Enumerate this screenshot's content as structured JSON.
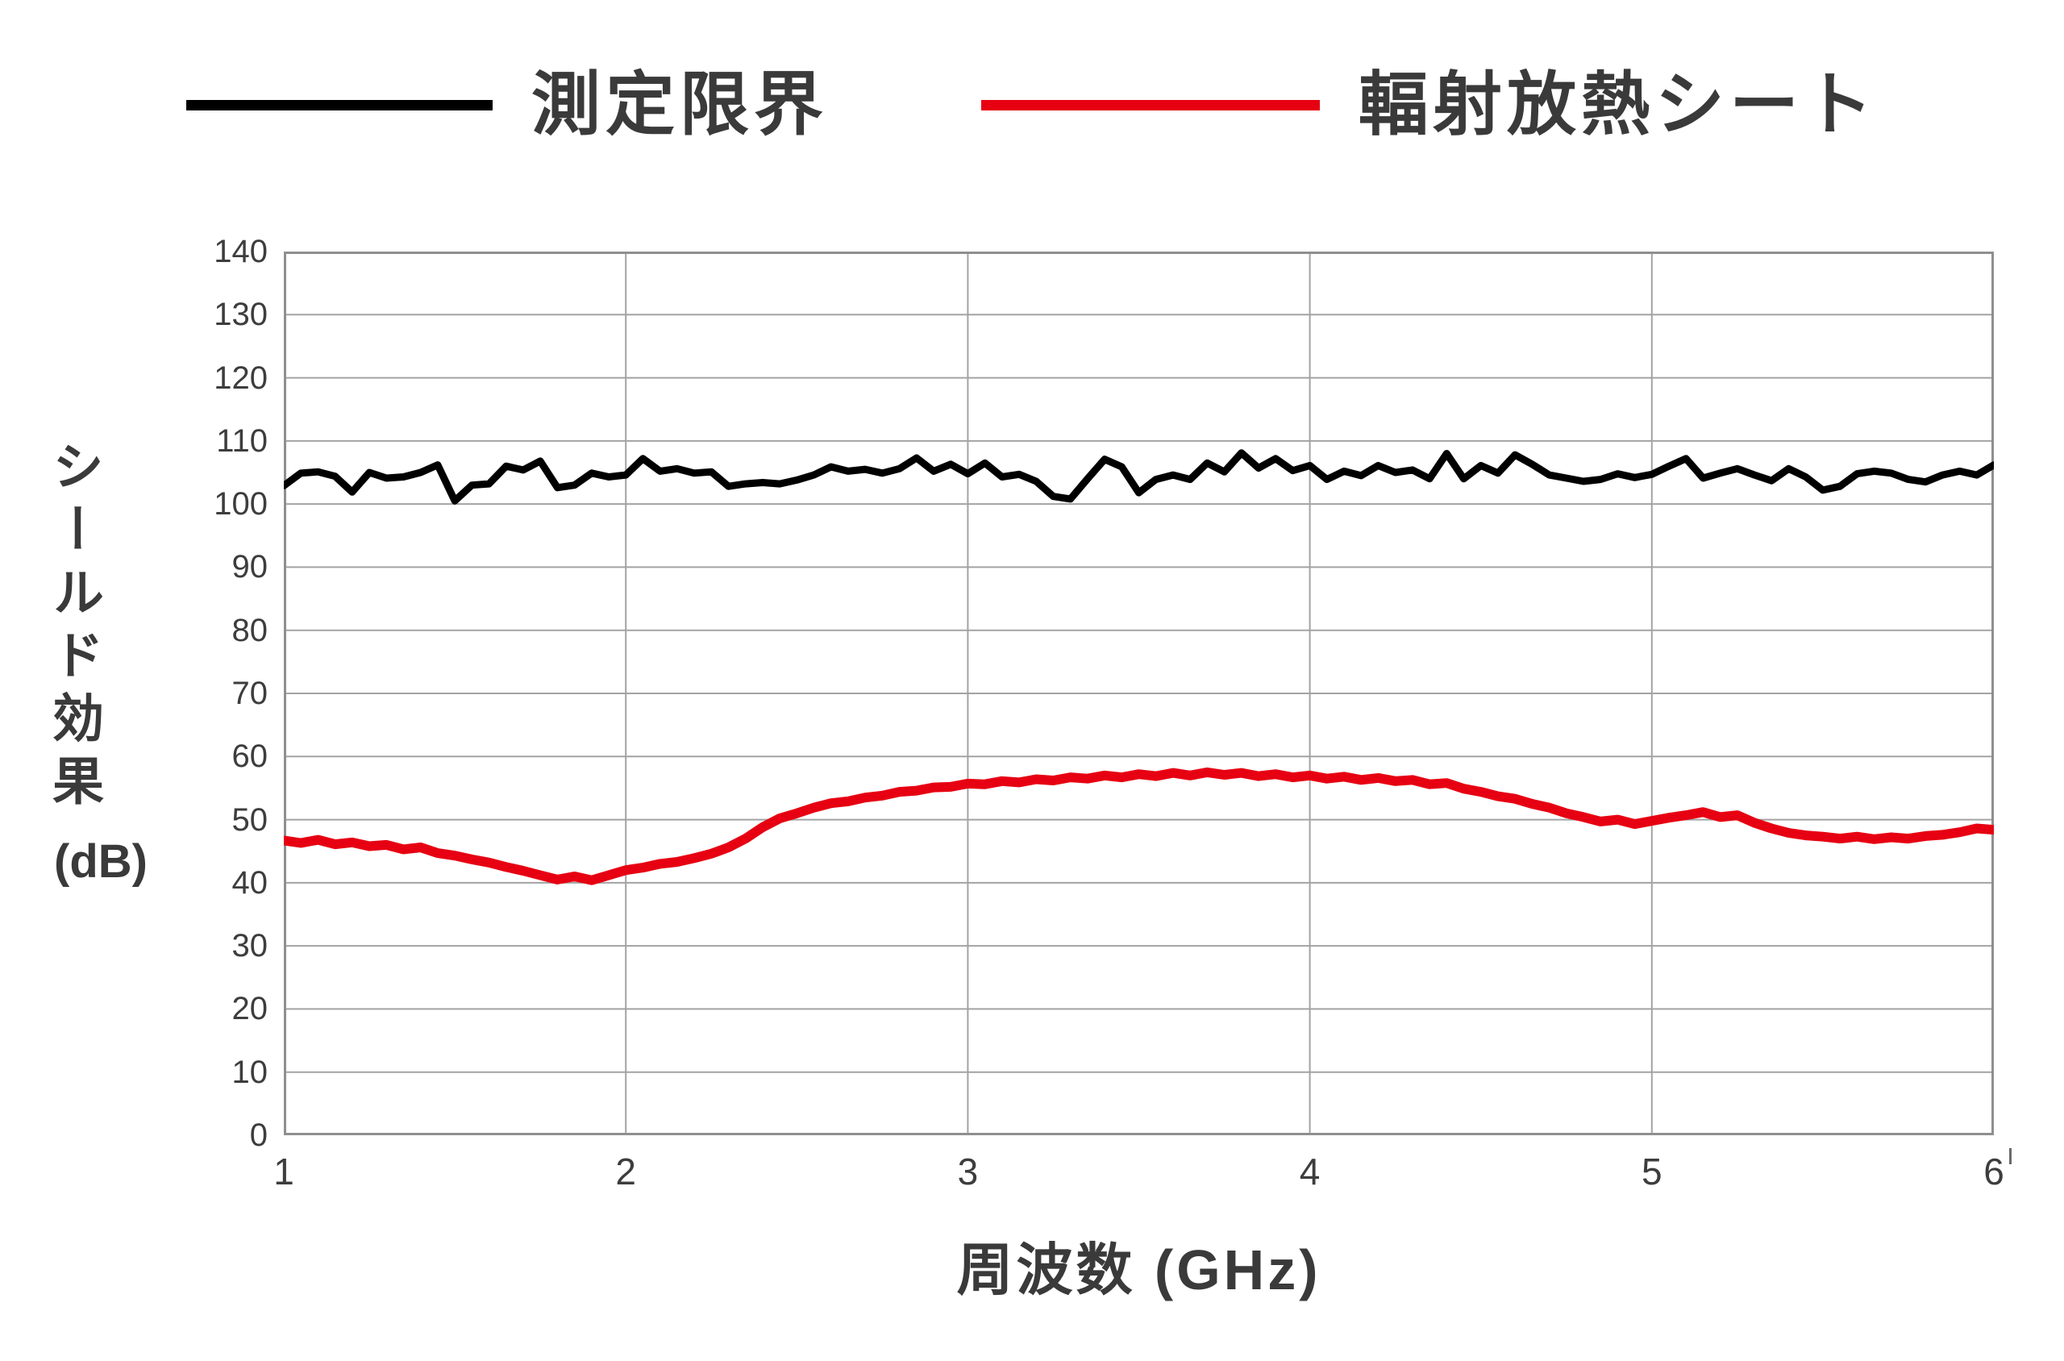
{
  "legend": {
    "items": [
      {
        "label": "測定限界",
        "color": "#000000"
      },
      {
        "label": "輻射放熱シート",
        "color": "#e60012"
      }
    ]
  },
  "axes": {
    "y_title": "シールド効果",
    "y_unit": "(dB)",
    "x_title": "周波数 (GHz)"
  },
  "chart_data": {
    "type": "line",
    "title": "",
    "xlabel": "周波数 (GHz)",
    "ylabel": "シールド効果 (dB)",
    "xlim": [
      1,
      6
    ],
    "ylim": [
      0,
      140
    ],
    "x_ticks": [
      1,
      2,
      3,
      4,
      5,
      6
    ],
    "y_ticks": [
      0,
      10,
      20,
      30,
      40,
      50,
      60,
      70,
      80,
      90,
      100,
      110,
      120,
      130,
      140
    ],
    "grid": true,
    "legend_position": "top-center",
    "grid_color": "#a3a3a3",
    "border_color": "#8f8f8f",
    "x_start": 1.0,
    "x_step": 0.05,
    "series": [
      {
        "name": "測定限界",
        "color": "#000000",
        "stroke_width": 9,
        "values": [
          102.9,
          104.9,
          105.1,
          104.4,
          101.9,
          105.0,
          104.1,
          104.3,
          105.0,
          106.2,
          100.5,
          103.0,
          103.2,
          106.0,
          105.4,
          106.8,
          102.6,
          103.0,
          104.9,
          104.3,
          104.6,
          107.2,
          105.2,
          105.6,
          104.9,
          105.1,
          102.8,
          103.2,
          103.4,
          103.2,
          103.8,
          104.6,
          105.9,
          105.2,
          105.5,
          104.9,
          105.6,
          107.3,
          105.2,
          106.3,
          104.8,
          106.5,
          104.3,
          104.7,
          103.6,
          101.2,
          100.8,
          104.0,
          107.1,
          105.9,
          101.8,
          103.9,
          104.6,
          103.9,
          106.5,
          105.1,
          108.1,
          105.7,
          107.2,
          105.3,
          106.1,
          103.9,
          105.2,
          104.5,
          106.1,
          105.0,
          105.4,
          104.0,
          108.0,
          104.0,
          106.1,
          104.9,
          107.8,
          106.3,
          104.6,
          104.1,
          103.6,
          103.9,
          104.8,
          104.2,
          104.7,
          106.0,
          107.2,
          104.1,
          104.9,
          105.6,
          104.6,
          103.7,
          105.6,
          104.3,
          102.2,
          102.8,
          104.8,
          105.2,
          104.9,
          103.9,
          103.5,
          104.6,
          105.2,
          104.6,
          106.2
        ]
      },
      {
        "name": "輻射放熱シート",
        "color": "#e60012",
        "stroke_width": 12,
        "values": [
          46.7,
          46.3,
          46.8,
          46.1,
          46.4,
          45.8,
          46.0,
          45.3,
          45.6,
          44.7,
          44.3,
          43.7,
          43.2,
          42.5,
          41.9,
          41.2,
          40.5,
          41.0,
          40.4,
          41.2,
          42.0,
          42.4,
          43.0,
          43.3,
          43.9,
          44.6,
          45.6,
          47.0,
          48.8,
          50.2,
          51.0,
          51.9,
          52.6,
          52.9,
          53.5,
          53.8,
          54.4,
          54.6,
          55.1,
          55.2,
          55.7,
          55.6,
          56.1,
          55.9,
          56.4,
          56.2,
          56.7,
          56.5,
          57.0,
          56.7,
          57.2,
          56.9,
          57.4,
          57.0,
          57.5,
          57.1,
          57.4,
          56.9,
          57.2,
          56.7,
          57.0,
          56.5,
          56.8,
          56.3,
          56.6,
          56.1,
          56.3,
          55.6,
          55.8,
          54.9,
          54.4,
          53.7,
          53.3,
          52.5,
          51.9,
          51.0,
          50.4,
          49.7,
          50.0,
          49.3,
          49.8,
          50.3,
          50.7,
          51.2,
          50.4,
          50.7,
          49.5,
          48.6,
          47.9,
          47.5,
          47.3,
          47.0,
          47.3,
          46.9,
          47.2,
          47.0,
          47.4,
          47.6,
          48.0,
          48.6,
          48.4
        ]
      }
    ]
  }
}
